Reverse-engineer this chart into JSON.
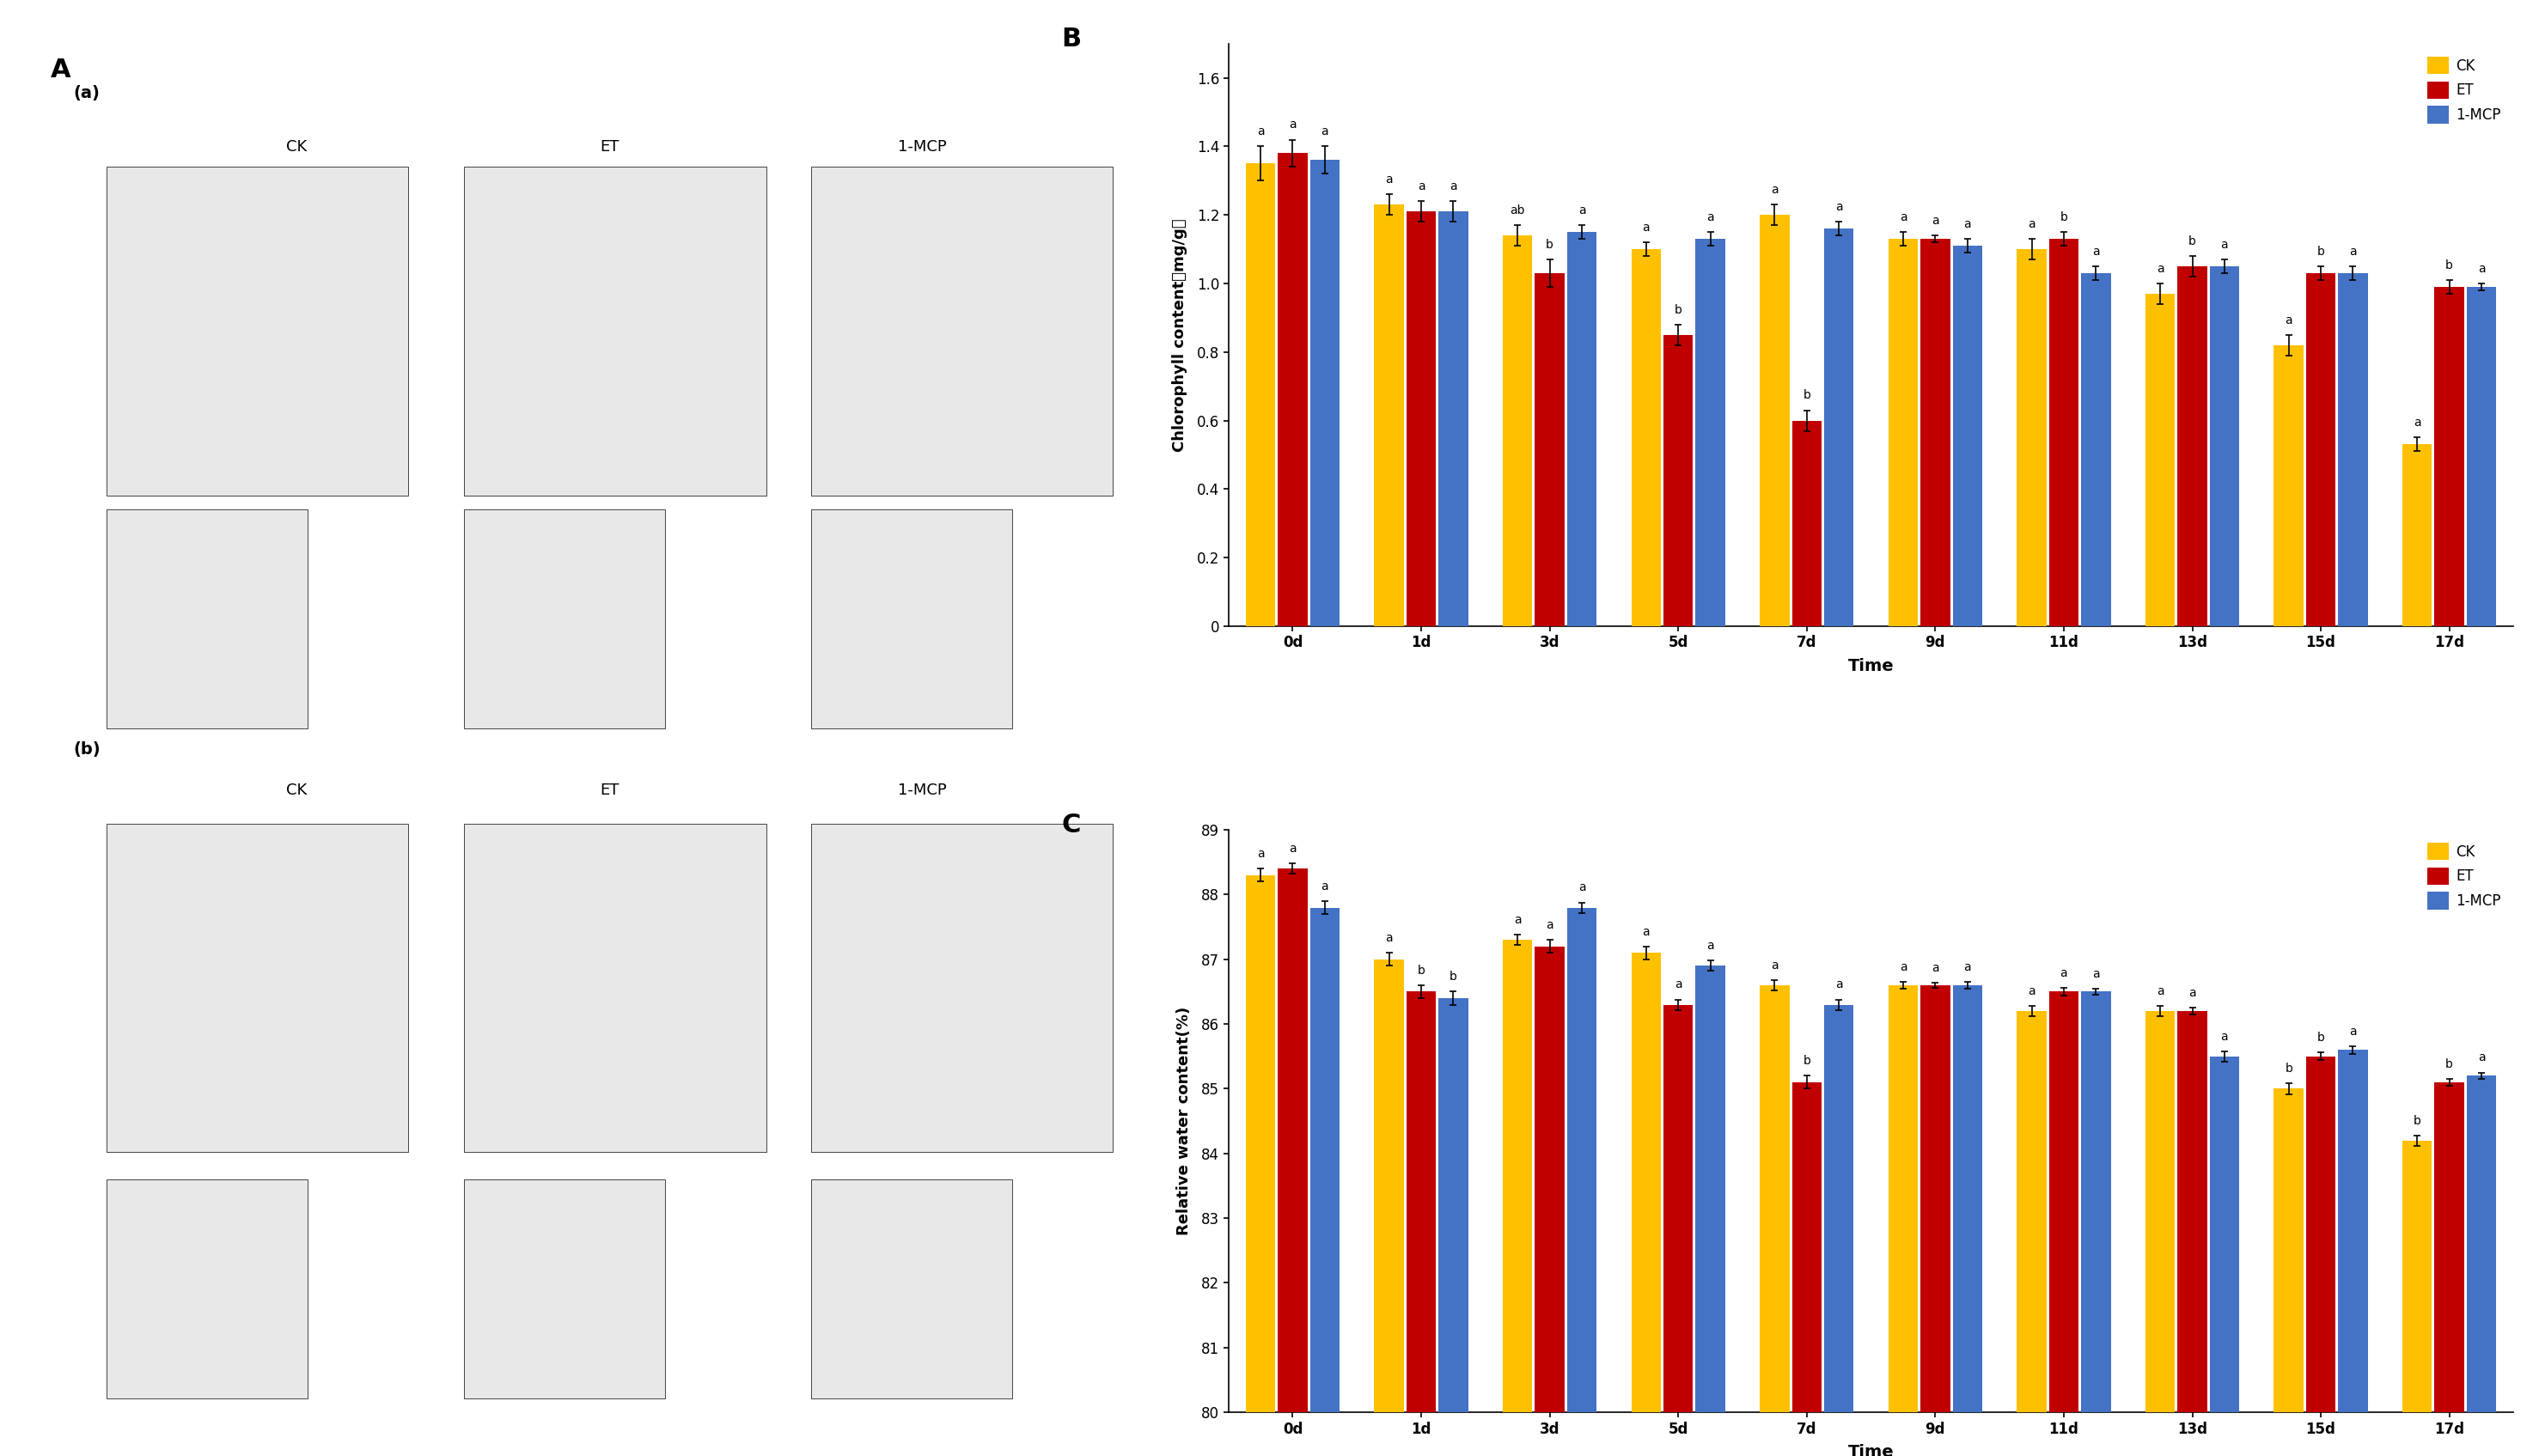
{
  "B_title": "B",
  "C_title": "C",
  "A_title": "A",
  "time_labels": [
    "0d",
    "1d",
    "3d",
    "5d",
    "7d",
    "9d",
    "11d",
    "13d",
    "15d",
    "17d"
  ],
  "chlorophyll_CK": [
    1.35,
    1.23,
    1.14,
    1.1,
    1.2,
    1.13,
    1.1,
    0.97,
    0.82,
    0.53
  ],
  "chlorophyll_ET": [
    1.38,
    1.21,
    1.03,
    0.85,
    0.6,
    1.13,
    1.13,
    1.05,
    1.03,
    0.99
  ],
  "chlorophyll_MCP": [
    1.36,
    1.21,
    1.15,
    1.13,
    1.16,
    1.11,
    1.03,
    1.05,
    1.03,
    0.99
  ],
  "chlorophyll_err_CK": [
    0.05,
    0.03,
    0.03,
    0.02,
    0.03,
    0.02,
    0.03,
    0.03,
    0.03,
    0.02
  ],
  "chlorophyll_err_ET": [
    0.04,
    0.03,
    0.04,
    0.03,
    0.03,
    0.01,
    0.02,
    0.03,
    0.02,
    0.02
  ],
  "chlorophyll_err_MCP": [
    0.04,
    0.03,
    0.02,
    0.02,
    0.02,
    0.02,
    0.02,
    0.02,
    0.02,
    0.01
  ],
  "chlorophyll_sig_CK": [
    "a",
    "a",
    "ab",
    "a",
    "a",
    "a",
    "a",
    "a",
    "a",
    "a"
  ],
  "chlorophyll_sig_ET": [
    "a",
    "a",
    "b",
    "b",
    "b",
    "a",
    "b",
    "b",
    "b",
    "b"
  ],
  "chlorophyll_sig_MCP": [
    "a",
    "a",
    "a",
    "a",
    "a",
    "a",
    "a",
    "a",
    "a",
    "a"
  ],
  "water_CK": [
    88.3,
    87.0,
    87.3,
    87.1,
    86.6,
    86.6,
    86.2,
    86.2,
    85.0,
    84.2
  ],
  "water_ET": [
    88.4,
    86.5,
    87.2,
    86.3,
    85.1,
    86.6,
    86.5,
    86.2,
    85.5,
    85.1
  ],
  "water_MCP": [
    87.8,
    86.4,
    87.8,
    86.9,
    86.3,
    86.6,
    86.5,
    85.5,
    85.6,
    85.2
  ],
  "water_err_CK": [
    0.1,
    0.1,
    0.08,
    0.1,
    0.08,
    0.05,
    0.08,
    0.08,
    0.08,
    0.08
  ],
  "water_err_ET": [
    0.08,
    0.1,
    0.1,
    0.08,
    0.1,
    0.04,
    0.06,
    0.05,
    0.06,
    0.05
  ],
  "water_err_MCP": [
    0.1,
    0.1,
    0.08,
    0.08,
    0.08,
    0.05,
    0.05,
    0.08,
    0.06,
    0.05
  ],
  "water_sig_CK": [
    "a",
    "a",
    "a",
    "a",
    "a",
    "a",
    "a",
    "a",
    "b",
    "b"
  ],
  "water_sig_ET": [
    "a",
    "b",
    "a",
    "a",
    "b",
    "a",
    "a",
    "a",
    "b",
    "b"
  ],
  "water_sig_MCP": [
    "a",
    "b",
    "a",
    "a",
    "a",
    "a",
    "a",
    "a",
    "a",
    "a"
  ],
  "color_CK": "#FFC000",
  "color_ET": "#C00000",
  "color_MCP": "#4472C4",
  "ylabel_B": "Chlorophyll content（mg/g）",
  "ylabel_C": "Relative water content(%)",
  "xlabel": "Time",
  "ylim_B": [
    0,
    1.7
  ],
  "ylim_C": [
    80,
    89
  ],
  "yticks_B": [
    0,
    0.2,
    0.4,
    0.6,
    0.8,
    1.0,
    1.2,
    1.4,
    1.6
  ],
  "yticks_C": [
    80,
    81,
    82,
    83,
    84,
    85,
    86,
    87,
    88,
    89
  ],
  "legend_labels": [
    "CK",
    "ET",
    "1-MCP"
  ],
  "bar_width": 0.25,
  "label_fontsize": 13,
  "tick_fontsize": 12,
  "sig_fontsize": 10,
  "legend_fontsize": 12
}
